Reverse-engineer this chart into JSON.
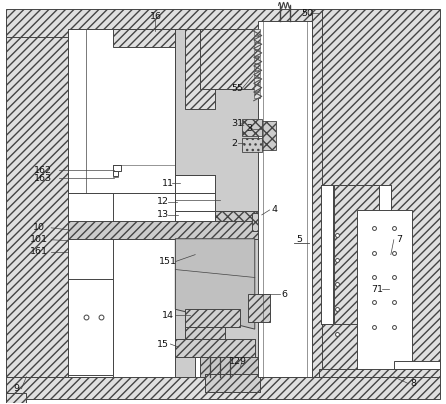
{
  "fig_width": 4.46,
  "fig_height": 4.04,
  "dpi": 100,
  "bg_color": "#ffffff",
  "lc": "#555555",
  "hatch_gray": "#e8e8e8",
  "light_gray": "#d0d0d0",
  "mid_gray": "#b8b8b8"
}
